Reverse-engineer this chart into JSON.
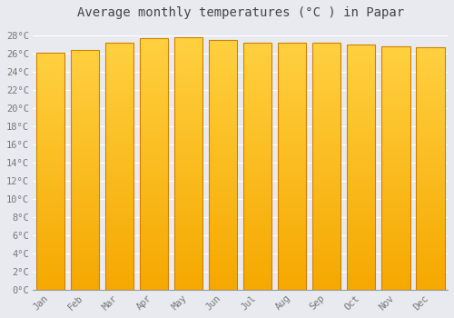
{
  "title": "Average monthly temperatures (°C ) in Papar",
  "months": [
    "Jan",
    "Feb",
    "Mar",
    "Apr",
    "May",
    "Jun",
    "Jul",
    "Aug",
    "Sep",
    "Oct",
    "Nov",
    "Dec"
  ],
  "values": [
    26.1,
    26.4,
    27.2,
    27.7,
    27.8,
    27.5,
    27.2,
    27.2,
    27.2,
    27.0,
    26.8,
    26.7
  ],
  "bar_color_bottom": "#F5A800",
  "bar_color_top": "#FFD040",
  "bar_edge_color": "#D08000",
  "ylim": [
    0,
    29
  ],
  "yticks": [
    0,
    2,
    4,
    6,
    8,
    10,
    12,
    14,
    16,
    18,
    20,
    22,
    24,
    26,
    28
  ],
  "ytick_labels": [
    "0°C",
    "2°C",
    "4°C",
    "6°C",
    "8°C",
    "10°C",
    "12°C",
    "14°C",
    "16°C",
    "18°C",
    "20°C",
    "22°C",
    "24°C",
    "26°C",
    "28°C"
  ],
  "background_color": "#e8eaf0",
  "plot_bg_color": "#e8eaf0",
  "grid_color": "#ffffff",
  "title_fontsize": 10,
  "tick_fontsize": 7.5,
  "font_family": "monospace",
  "bar_width": 0.82
}
